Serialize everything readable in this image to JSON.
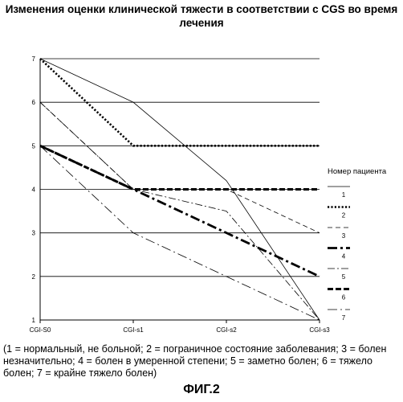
{
  "chart_data": {
    "type": "line",
    "title": "Изменения оценки клинической тяжести в соответствии с CGS во время лечения",
    "categories": [
      "CGI-S0",
      "CGI-s1",
      "CGI-s2",
      "CGI-s3"
    ],
    "ylim": [
      1,
      7
    ],
    "yticks": [
      "1",
      "2",
      "3",
      "4",
      "5",
      "6",
      "7"
    ],
    "grid": "horizontal",
    "legend_title": "Номер пациента",
    "legend_position": "right",
    "series": [
      {
        "name": "1",
        "values": [
          7,
          6,
          4.2,
          1
        ],
        "style": "solid-thin",
        "color": "#000000"
      },
      {
        "name": "2",
        "values": [
          7,
          5,
          5,
          5
        ],
        "style": "dotted-bold",
        "color": "#000000"
      },
      {
        "name": "3",
        "values": [
          6,
          4,
          4,
          3
        ],
        "style": "dashed-thin",
        "color": "#000000"
      },
      {
        "name": "4",
        "values": [
          5,
          4,
          3,
          2
        ],
        "style": "dashdot-bold",
        "color": "#000000"
      },
      {
        "name": "5",
        "values": [
          6,
          4,
          3.5,
          1
        ],
        "style": "dashdot-thin",
        "color": "#000000"
      },
      {
        "name": "6",
        "values": [
          5,
          4,
          4,
          4
        ],
        "style": "dashed-bold",
        "color": "#000000"
      },
      {
        "name": "7",
        "values": [
          5,
          3,
          2,
          1
        ],
        "style": "longdash-thin",
        "color": "#000000"
      }
    ]
  },
  "footnote": "(1 = нормальный, не больной; 2 = пограничное состояние заболевания; 3 = болен незначительно; 4 = болен в умеренной степени; 5 = заметно болен; 6 = тяжело болен; 7 = крайне тяжело болен)",
  "figure_label": "ФИГ.2"
}
